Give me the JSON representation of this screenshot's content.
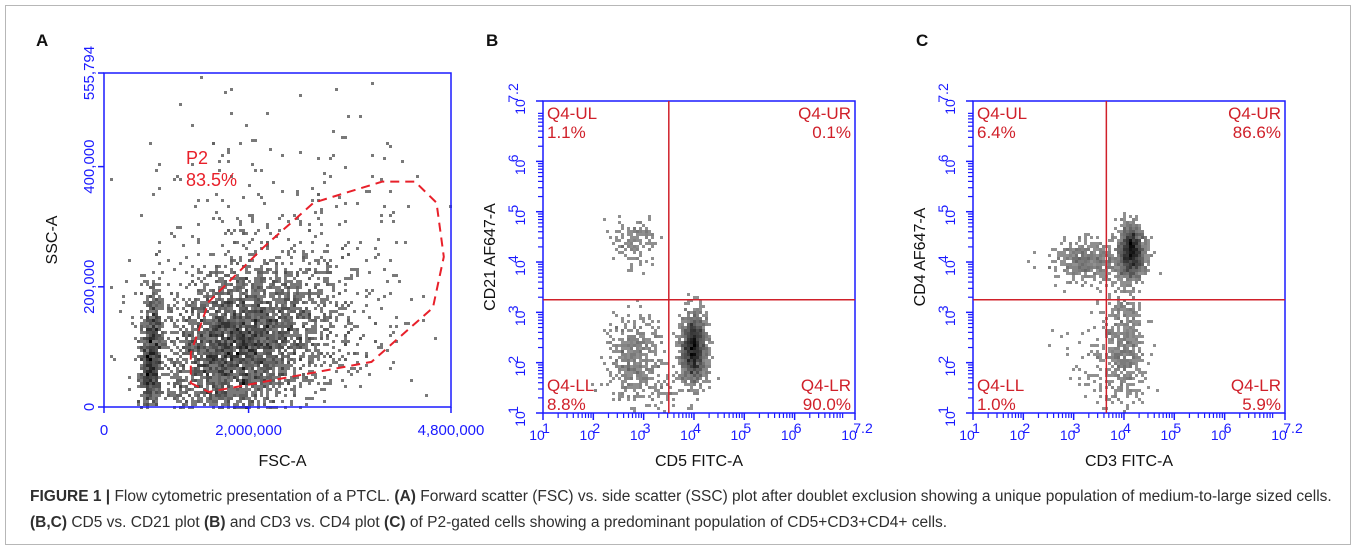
{
  "figure": {
    "caption_label": "FIGURE 1 |",
    "caption_parts": [
      {
        "t": " Flow cytometric presentation of a PTCL. ",
        "b": false
      },
      {
        "t": "(A)",
        "b": true
      },
      {
        "t": " Forward scatter (FSC) vs. side scatter (SSC) plot after doublet exclusion showing a unique population of medium-to-large sized cells. ",
        "b": false
      },
      {
        "t": "(B,C)",
        "b": true
      },
      {
        "t": " CD5 vs. CD21 plot ",
        "b": false
      },
      {
        "t": "(B)",
        "b": true
      },
      {
        "t": " and CD3 vs. CD4 plot ",
        "b": false
      },
      {
        "t": "(C)",
        "b": true
      },
      {
        "t": " of P2-gated cells showing a predominant population of CD5+CD3+CD4+ cells.",
        "b": false
      }
    ]
  },
  "colors": {
    "axis": "#1a1aff",
    "gate": "#e8202a",
    "quad": "#d0202a",
    "dots": "#202020",
    "label": "#111111"
  },
  "chart_data": [
    {
      "type": "scatter",
      "panel": "A",
      "xlabel": "FSC-A",
      "ylabel": "SSC-A",
      "xlim": [
        0,
        4800000
      ],
      "ylim": [
        0,
        555794
      ],
      "x_ticks": [
        "0",
        "2,000,000",
        "4,800,000"
      ],
      "y_ticks": [
        "0",
        "200,000",
        "400,000",
        "555,794"
      ],
      "gate": {
        "name": "P2",
        "percent": "83.5%",
        "polygon": [
          [
            1200000,
            40000
          ],
          [
            1450000,
            25000
          ],
          [
            3700000,
            75000
          ],
          [
            4550000,
            165000
          ],
          [
            4700000,
            250000
          ],
          [
            4600000,
            340000
          ],
          [
            4300000,
            375000
          ],
          [
            3850000,
            375000
          ],
          [
            2900000,
            340000
          ],
          [
            2200000,
            265000
          ],
          [
            1450000,
            175000
          ],
          [
            1200000,
            90000
          ]
        ]
      },
      "populations": [
        {
          "cx": 1800000,
          "cy": 95000,
          "sx": 520000,
          "sy": 60000,
          "n": 2600,
          "rot": 0.25
        },
        {
          "cx": 2400000,
          "cy": 140000,
          "sx": 700000,
          "sy": 60000,
          "n": 900,
          "rot": 0.1
        },
        {
          "cx": 650000,
          "cy": 80000,
          "sx": 200000,
          "sy": 55000,
          "n": 700,
          "rot": 0.9
        },
        {
          "cx": 2000000,
          "cy": 230000,
          "sx": 1200000,
          "sy": 140000,
          "n": 350,
          "rot": 0.3
        }
      ]
    },
    {
      "type": "scatter",
      "panel": "B",
      "xlabel": "CD5 FITC-A",
      "ylabel": "CD21 AF647-A",
      "scale": "log",
      "xlim_log10": [
        1,
        7.2
      ],
      "ylim_log10": [
        1,
        7.2
      ],
      "tick_exponents": [
        "1",
        "2",
        "3",
        "4",
        "5",
        "6",
        "7.2"
      ],
      "quadrant_split_log10": {
        "x": 3.5,
        "y": 3.25
      },
      "quadrants": [
        {
          "name": "Q4-UL",
          "percent": "1.1%",
          "pos": "top-left"
        },
        {
          "name": "Q4-UR",
          "percent": "0.1%",
          "pos": "top-right"
        },
        {
          "name": "Q4-LL",
          "percent": "8.8%",
          "pos": "bottom-left"
        },
        {
          "name": "Q4-LR",
          "percent": "90.0%",
          "pos": "bottom-right"
        }
      ],
      "populations": [
        {
          "cx": 4.0,
          "cy": 2.3,
          "sx": 0.12,
          "sy": 0.32,
          "n": 1700,
          "rot": 0
        },
        {
          "cx": 2.8,
          "cy": 2.2,
          "sx": 0.25,
          "sy": 0.35,
          "n": 350,
          "rot": 0
        },
        {
          "cx": 2.8,
          "cy": 4.4,
          "sx": 0.22,
          "sy": 0.25,
          "n": 120,
          "rot": 0
        },
        {
          "cx": 3.2,
          "cy": 1.6,
          "sx": 0.5,
          "sy": 0.25,
          "n": 150,
          "rot": 0
        }
      ]
    },
    {
      "type": "scatter",
      "panel": "C",
      "xlabel": "CD3 FITC-A",
      "ylabel": "CD4 AF647-A",
      "scale": "log",
      "xlim_log10": [
        1,
        7.2
      ],
      "ylim_log10": [
        1,
        7.2
      ],
      "tick_exponents": [
        "1",
        "2",
        "3",
        "4",
        "5",
        "6",
        "7.2"
      ],
      "quadrant_split_log10": {
        "x": 3.65,
        "y": 3.25
      },
      "quadrants": [
        {
          "name": "Q4-UL",
          "percent": "6.4%",
          "pos": "top-left"
        },
        {
          "name": "Q4-UR",
          "percent": "86.6%",
          "pos": "top-right"
        },
        {
          "name": "Q4-LL",
          "percent": "1.0%",
          "pos": "bottom-left"
        },
        {
          "name": "Q4-LR",
          "percent": "5.9%",
          "pos": "bottom-right"
        }
      ],
      "populations": [
        {
          "cx": 4.15,
          "cy": 4.2,
          "sx": 0.12,
          "sy": 0.25,
          "n": 1500,
          "rot": 0
        },
        {
          "cx": 3.3,
          "cy": 4.0,
          "sx": 0.35,
          "sy": 0.2,
          "n": 450,
          "rot": 0
        },
        {
          "cx": 4.0,
          "cy": 2.4,
          "sx": 0.2,
          "sy": 0.55,
          "n": 450,
          "rot": 0
        },
        {
          "cx": 3.6,
          "cy": 2.0,
          "sx": 0.4,
          "sy": 0.4,
          "n": 120,
          "rot": 0
        }
      ]
    }
  ]
}
